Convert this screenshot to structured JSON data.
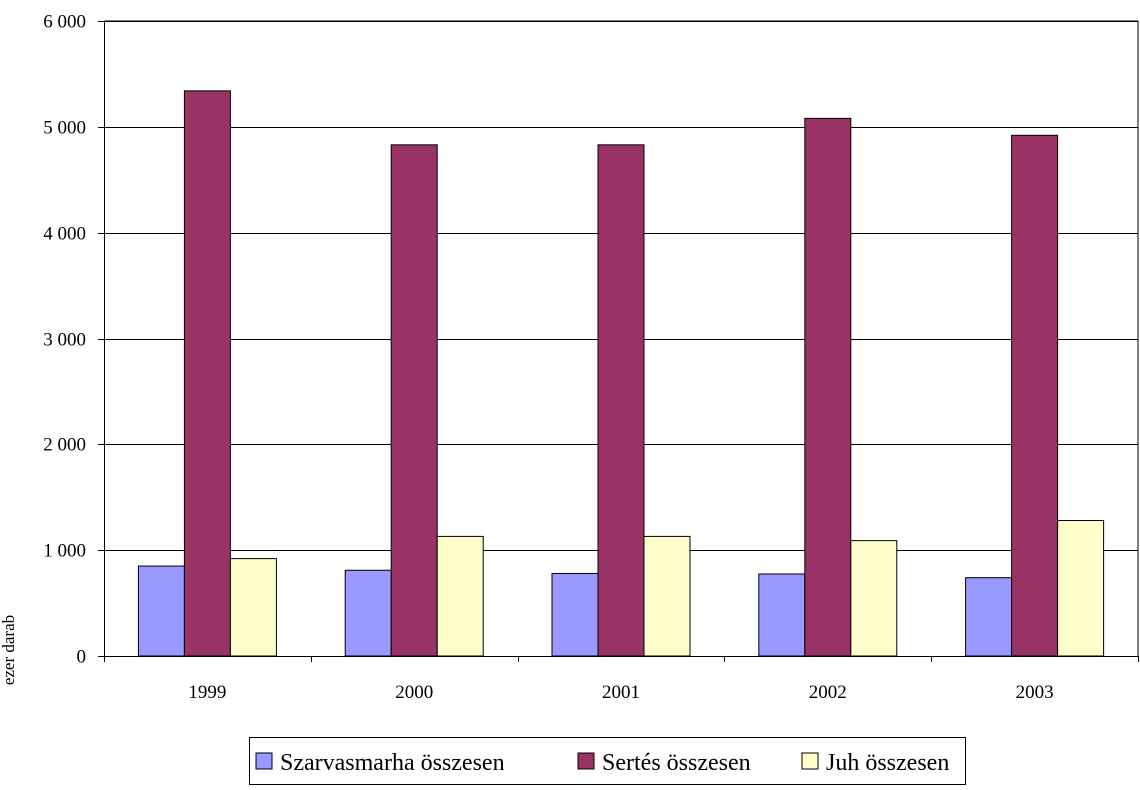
{
  "chart_data": {
    "type": "bar",
    "title": "",
    "xlabel": "",
    "ylabel": "ezer darab",
    "categories": [
      "1999",
      "2000",
      "2001",
      "2002",
      "2003"
    ],
    "series": [
      {
        "name": "Szarvasmarha összesen",
        "color": "#9999FF",
        "values": [
          850,
          810,
          780,
          775,
          740
        ]
      },
      {
        "name": "Sertés összesen",
        "color": "#993366",
        "values": [
          5340,
          4830,
          4830,
          5080,
          4920
        ]
      },
      {
        "name": "Juh összesen",
        "color": "#FFFFCC",
        "values": [
          920,
          1130,
          1130,
          1090,
          1280
        ]
      }
    ],
    "ylim": [
      0,
      6000
    ],
    "yticks": [
      0,
      1000,
      2000,
      3000,
      4000,
      5000,
      6000
    ],
    "ytick_labels": [
      "0",
      "1 000",
      "2 000",
      "3 000",
      "4 000",
      "5 000",
      "6 000"
    ],
    "grid": true,
    "legend_position": "bottom"
  }
}
